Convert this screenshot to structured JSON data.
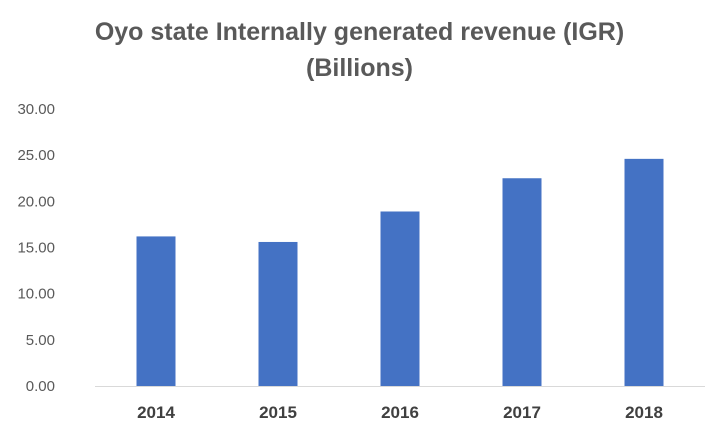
{
  "chart_data": {
    "type": "bar",
    "title_line1": "Oyo state Internally generated revenue (IGR)",
    "title_line2": "(Billions)",
    "categories": [
      "2014",
      "2015",
      "2016",
      "2017",
      "2018"
    ],
    "values": [
      16.2,
      15.6,
      18.9,
      22.5,
      24.6
    ],
    "ylim": [
      0,
      30
    ],
    "yticks": [
      "0.00",
      "5.00",
      "10.00",
      "15.00",
      "20.00",
      "25.00",
      "30.00"
    ],
    "ytick_values": [
      0,
      5,
      10,
      15,
      20,
      25,
      30
    ],
    "xlabel": "",
    "ylabel": "",
    "grid": false,
    "bar_color": "#4472C4",
    "axis_color": "#D9D9D9"
  }
}
